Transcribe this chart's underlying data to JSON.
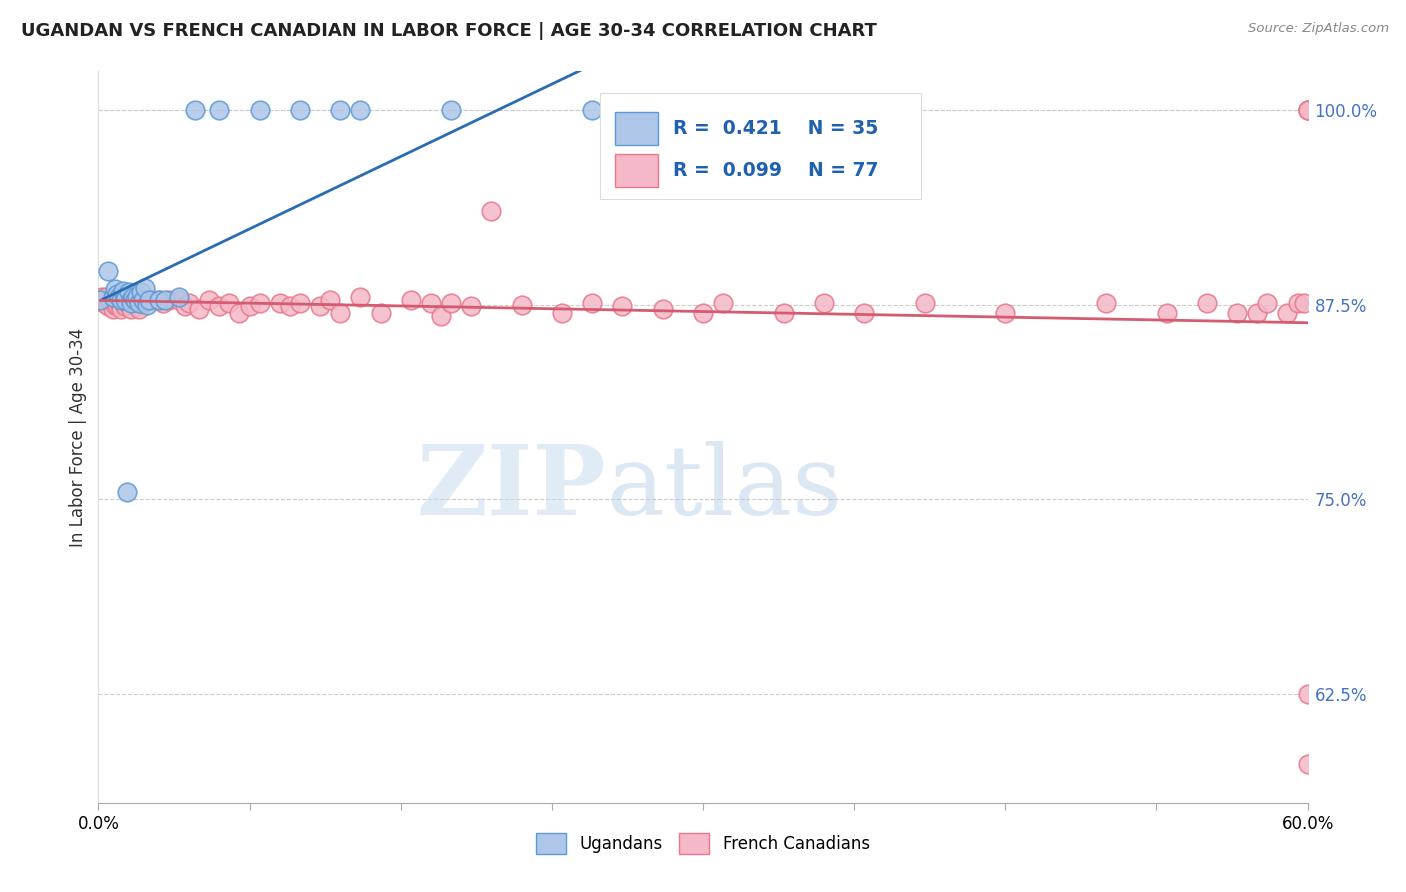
{
  "title": "UGANDAN VS FRENCH CANADIAN IN LABOR FORCE | AGE 30-34 CORRELATION CHART",
  "source": "Source: ZipAtlas.com",
  "ylabel": "In Labor Force | Age 30-34",
  "xmin": 0.0,
  "xmax": 0.6,
  "ymin": 0.555,
  "ymax": 1.025,
  "yticks": [
    0.625,
    0.75,
    0.875,
    1.0
  ],
  "ytick_labels": [
    "62.5%",
    "75.0%",
    "87.5%",
    "100.0%"
  ],
  "blue_R": 0.421,
  "blue_N": 35,
  "pink_R": 0.099,
  "pink_N": 77,
  "blue_color": "#AEC6E8",
  "pink_color": "#F4B8C8",
  "blue_edge_color": "#5B9BD5",
  "pink_edge_color": "#E8788A",
  "blue_line_color": "#2B6CB0",
  "pink_line_color": "#D45B70",
  "legend_blue_label": "Ugandans",
  "legend_pink_label": "French Canadians",
  "blue_x": [
    0.001,
    0.005,
    0.007,
    0.008,
    0.009,
    0.01,
    0.011,
    0.012,
    0.013,
    0.013,
    0.014,
    0.015,
    0.016,
    0.016,
    0.017,
    0.018,
    0.019,
    0.02,
    0.021,
    0.022,
    0.023,
    0.024,
    0.025,
    0.03,
    0.033,
    0.04,
    0.048,
    0.06,
    0.08,
    0.1,
    0.12,
    0.13,
    0.175,
    0.245,
    0.31
  ],
  "blue_y": [
    0.878,
    0.897,
    0.88,
    0.885,
    0.882,
    0.88,
    0.878,
    0.884,
    0.88,
    0.878,
    0.755,
    0.883,
    0.878,
    0.876,
    0.88,
    0.878,
    0.88,
    0.876,
    0.883,
    0.878,
    0.886,
    0.875,
    0.878,
    0.878,
    0.878,
    0.88,
    1.0,
    1.0,
    1.0,
    1.0,
    1.0,
    1.0,
    1.0,
    1.0,
    1.0
  ],
  "pink_x": [
    0.001,
    0.002,
    0.003,
    0.004,
    0.005,
    0.006,
    0.007,
    0.008,
    0.009,
    0.01,
    0.011,
    0.012,
    0.013,
    0.014,
    0.015,
    0.016,
    0.017,
    0.018,
    0.019,
    0.02,
    0.021,
    0.022,
    0.025,
    0.027,
    0.03,
    0.032,
    0.035,
    0.04,
    0.043,
    0.045,
    0.05,
    0.055,
    0.06,
    0.065,
    0.07,
    0.075,
    0.08,
    0.09,
    0.095,
    0.1,
    0.11,
    0.115,
    0.12,
    0.13,
    0.14,
    0.155,
    0.165,
    0.17,
    0.175,
    0.185,
    0.195,
    0.21,
    0.23,
    0.245,
    0.26,
    0.28,
    0.3,
    0.31,
    0.34,
    0.36,
    0.38,
    0.41,
    0.45,
    0.5,
    0.53,
    0.55,
    0.565,
    0.575,
    0.58,
    0.59,
    0.595,
    0.598,
    0.6,
    0.6,
    0.6,
    0.6,
    0.6
  ],
  "pink_y": [
    0.878,
    0.88,
    0.876,
    0.88,
    0.874,
    0.876,
    0.872,
    0.875,
    0.875,
    0.876,
    0.872,
    0.876,
    0.874,
    0.876,
    0.876,
    0.872,
    0.878,
    0.876,
    0.874,
    0.872,
    0.876,
    0.876,
    0.878,
    0.878,
    0.878,
    0.876,
    0.878,
    0.878,
    0.874,
    0.876,
    0.872,
    0.878,
    0.874,
    0.876,
    0.87,
    0.874,
    0.876,
    0.876,
    0.874,
    0.876,
    0.874,
    0.878,
    0.87,
    0.88,
    0.87,
    0.878,
    0.876,
    0.868,
    0.876,
    0.874,
    0.935,
    0.875,
    0.87,
    0.876,
    0.874,
    0.872,
    0.87,
    0.876,
    0.87,
    0.876,
    0.87,
    0.876,
    0.87,
    0.876,
    0.87,
    0.876,
    0.87,
    0.87,
    0.876,
    0.87,
    0.876,
    0.876,
    1.0,
    1.0,
    1.0,
    0.625,
    0.58
  ],
  "watermark_zip": "ZIP",
  "watermark_atlas": "atlas",
  "background_color": "#FFFFFF",
  "grid_color": "#CCCCCC",
  "marker_size": 180
}
